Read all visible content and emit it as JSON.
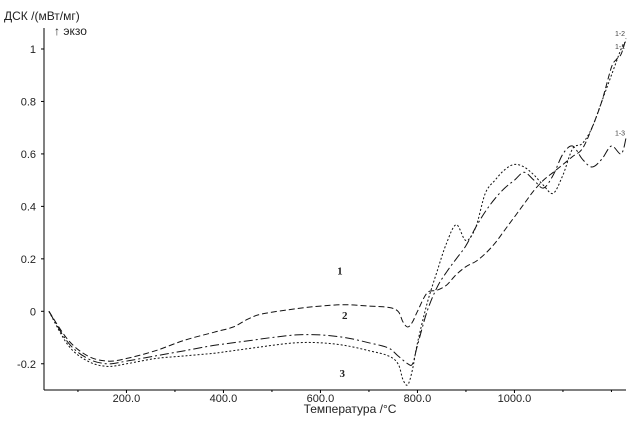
{
  "chart_data": {
    "type": "line",
    "ylabel": "ДСК /(мВт/мг)",
    "ylabel_note": "↑ экзо",
    "xlabel": "Температура /°C",
    "xlim": [
      30,
      1230
    ],
    "ylim": [
      -0.3,
      1.08
    ],
    "x_ticks": [
      200,
      400,
      600,
      800,
      1000
    ],
    "x_tick_labels": [
      "200.0",
      "400.0",
      "600.0",
      "800.0",
      "1000.0"
    ],
    "y_ticks": [
      -0.2,
      0,
      0.2,
      0.4,
      0.6,
      0.8,
      1.0
    ],
    "y_tick_labels": [
      "-0.2",
      "0",
      "0.2",
      "0.4",
      "0.6",
      "0.8",
      "1"
    ],
    "grid": false,
    "curve_labels": [
      {
        "text": "1",
        "x": 640,
        "y": 0.14
      },
      {
        "text": "2",
        "x": 650,
        "y": -0.03
      },
      {
        "text": "3",
        "x": 645,
        "y": -0.25
      }
    ],
    "end_labels": [
      {
        "text": "1-2",
        "x": 1225,
        "y": 1.05
      },
      {
        "text": "1-1",
        "x": 1225,
        "y": 1.0
      },
      {
        "text": "1-3",
        "x": 1225,
        "y": 0.67
      }
    ],
    "series": [
      {
        "dash": "6,3",
        "x": [
          40,
          80,
          120,
          160,
          200,
          260,
          320,
          380,
          420,
          450,
          480,
          550,
          600,
          650,
          700,
          740,
          760,
          770,
          780,
          790,
          800,
          820,
          840,
          860,
          880,
          900,
          920,
          940,
          960,
          980,
          1000,
          1020,
          1040,
          1060,
          1080,
          1100,
          1120,
          1140,
          1160,
          1180,
          1200,
          1210,
          1220,
          1230
        ],
        "y": [
          0.0,
          -0.11,
          -0.17,
          -0.19,
          -0.18,
          -0.15,
          -0.11,
          -0.08,
          -0.06,
          -0.03,
          -0.01,
          0.01,
          0.02,
          0.025,
          0.02,
          0.015,
          0.0,
          -0.04,
          -0.06,
          -0.04,
          0.0,
          0.07,
          0.08,
          0.1,
          0.14,
          0.17,
          0.19,
          0.22,
          0.26,
          0.31,
          0.36,
          0.41,
          0.46,
          0.5,
          0.53,
          0.56,
          0.59,
          0.62,
          0.7,
          0.8,
          0.93,
          0.96,
          0.98,
          1.04
        ]
      },
      {
        "dash": "9,3,2,3",
        "x": [
          40,
          80,
          120,
          160,
          200,
          260,
          320,
          380,
          420,
          460,
          500,
          550,
          600,
          650,
          700,
          740,
          760,
          780,
          790,
          800,
          820,
          840,
          860,
          880,
          900,
          920,
          940,
          960,
          980,
          1000,
          1020,
          1040,
          1060,
          1080,
          1100,
          1120,
          1140,
          1160,
          1180,
          1200,
          1220,
          1230
        ],
        "y": [
          0.0,
          -0.12,
          -0.18,
          -0.2,
          -0.19,
          -0.17,
          -0.15,
          -0.13,
          -0.12,
          -0.11,
          -0.1,
          -0.09,
          -0.09,
          -0.1,
          -0.12,
          -0.14,
          -0.17,
          -0.2,
          -0.2,
          -0.13,
          0.0,
          0.09,
          0.15,
          0.2,
          0.25,
          0.32,
          0.38,
          0.43,
          0.47,
          0.5,
          0.53,
          0.5,
          0.47,
          0.52,
          0.6,
          0.63,
          0.58,
          0.55,
          0.58,
          0.63,
          0.6,
          0.66
        ]
      },
      {
        "dash": "2,2",
        "x": [
          40,
          80,
          120,
          160,
          200,
          260,
          320,
          380,
          420,
          460,
          500,
          550,
          600,
          650,
          700,
          740,
          760,
          770,
          780,
          790,
          800,
          820,
          840,
          860,
          880,
          900,
          920,
          940,
          960,
          980,
          1000,
          1020,
          1040,
          1060,
          1080,
          1100,
          1120,
          1140,
          1160,
          1180,
          1200,
          1220,
          1230
        ],
        "y": [
          0.0,
          -0.13,
          -0.19,
          -0.21,
          -0.2,
          -0.18,
          -0.17,
          -0.16,
          -0.15,
          -0.14,
          -0.13,
          -0.12,
          -0.12,
          -0.13,
          -0.15,
          -0.17,
          -0.2,
          -0.26,
          -0.28,
          -0.22,
          -0.12,
          0.03,
          0.15,
          0.26,
          0.33,
          0.27,
          0.32,
          0.45,
          0.5,
          0.54,
          0.56,
          0.55,
          0.52,
          0.48,
          0.45,
          0.52,
          0.62,
          0.64,
          0.7,
          0.8,
          0.9,
          1.0,
          1.03
        ]
      }
    ]
  }
}
